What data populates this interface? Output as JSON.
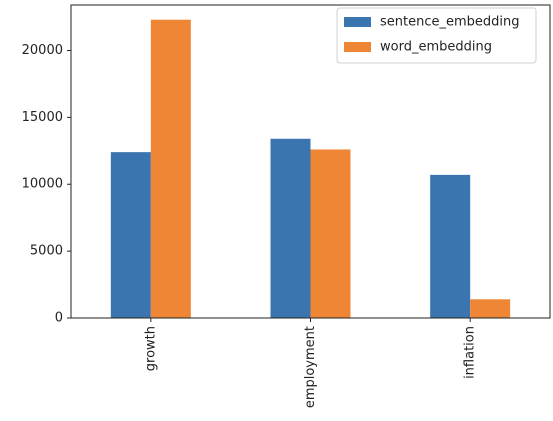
{
  "chart_data": {
    "type": "bar",
    "categories": [
      "growth",
      "employment",
      "inflation"
    ],
    "series": [
      {
        "name": "sentence_embedding",
        "color": "#3b75af",
        "values": [
          12400,
          13400,
          10700
        ]
      },
      {
        "name": "word_embedding",
        "color": "#ef8636",
        "values": [
          22300,
          12600,
          1400
        ]
      }
    ],
    "ylim": [
      0,
      23400
    ],
    "yticks": [
      0,
      5000,
      10000,
      15000,
      20000
    ],
    "ytick_labels": [
      "0",
      "5000",
      "10000",
      "15000",
      "20000"
    ],
    "grid": false,
    "legend_position": "top-right",
    "x_tick_rotation": "vertical"
  }
}
